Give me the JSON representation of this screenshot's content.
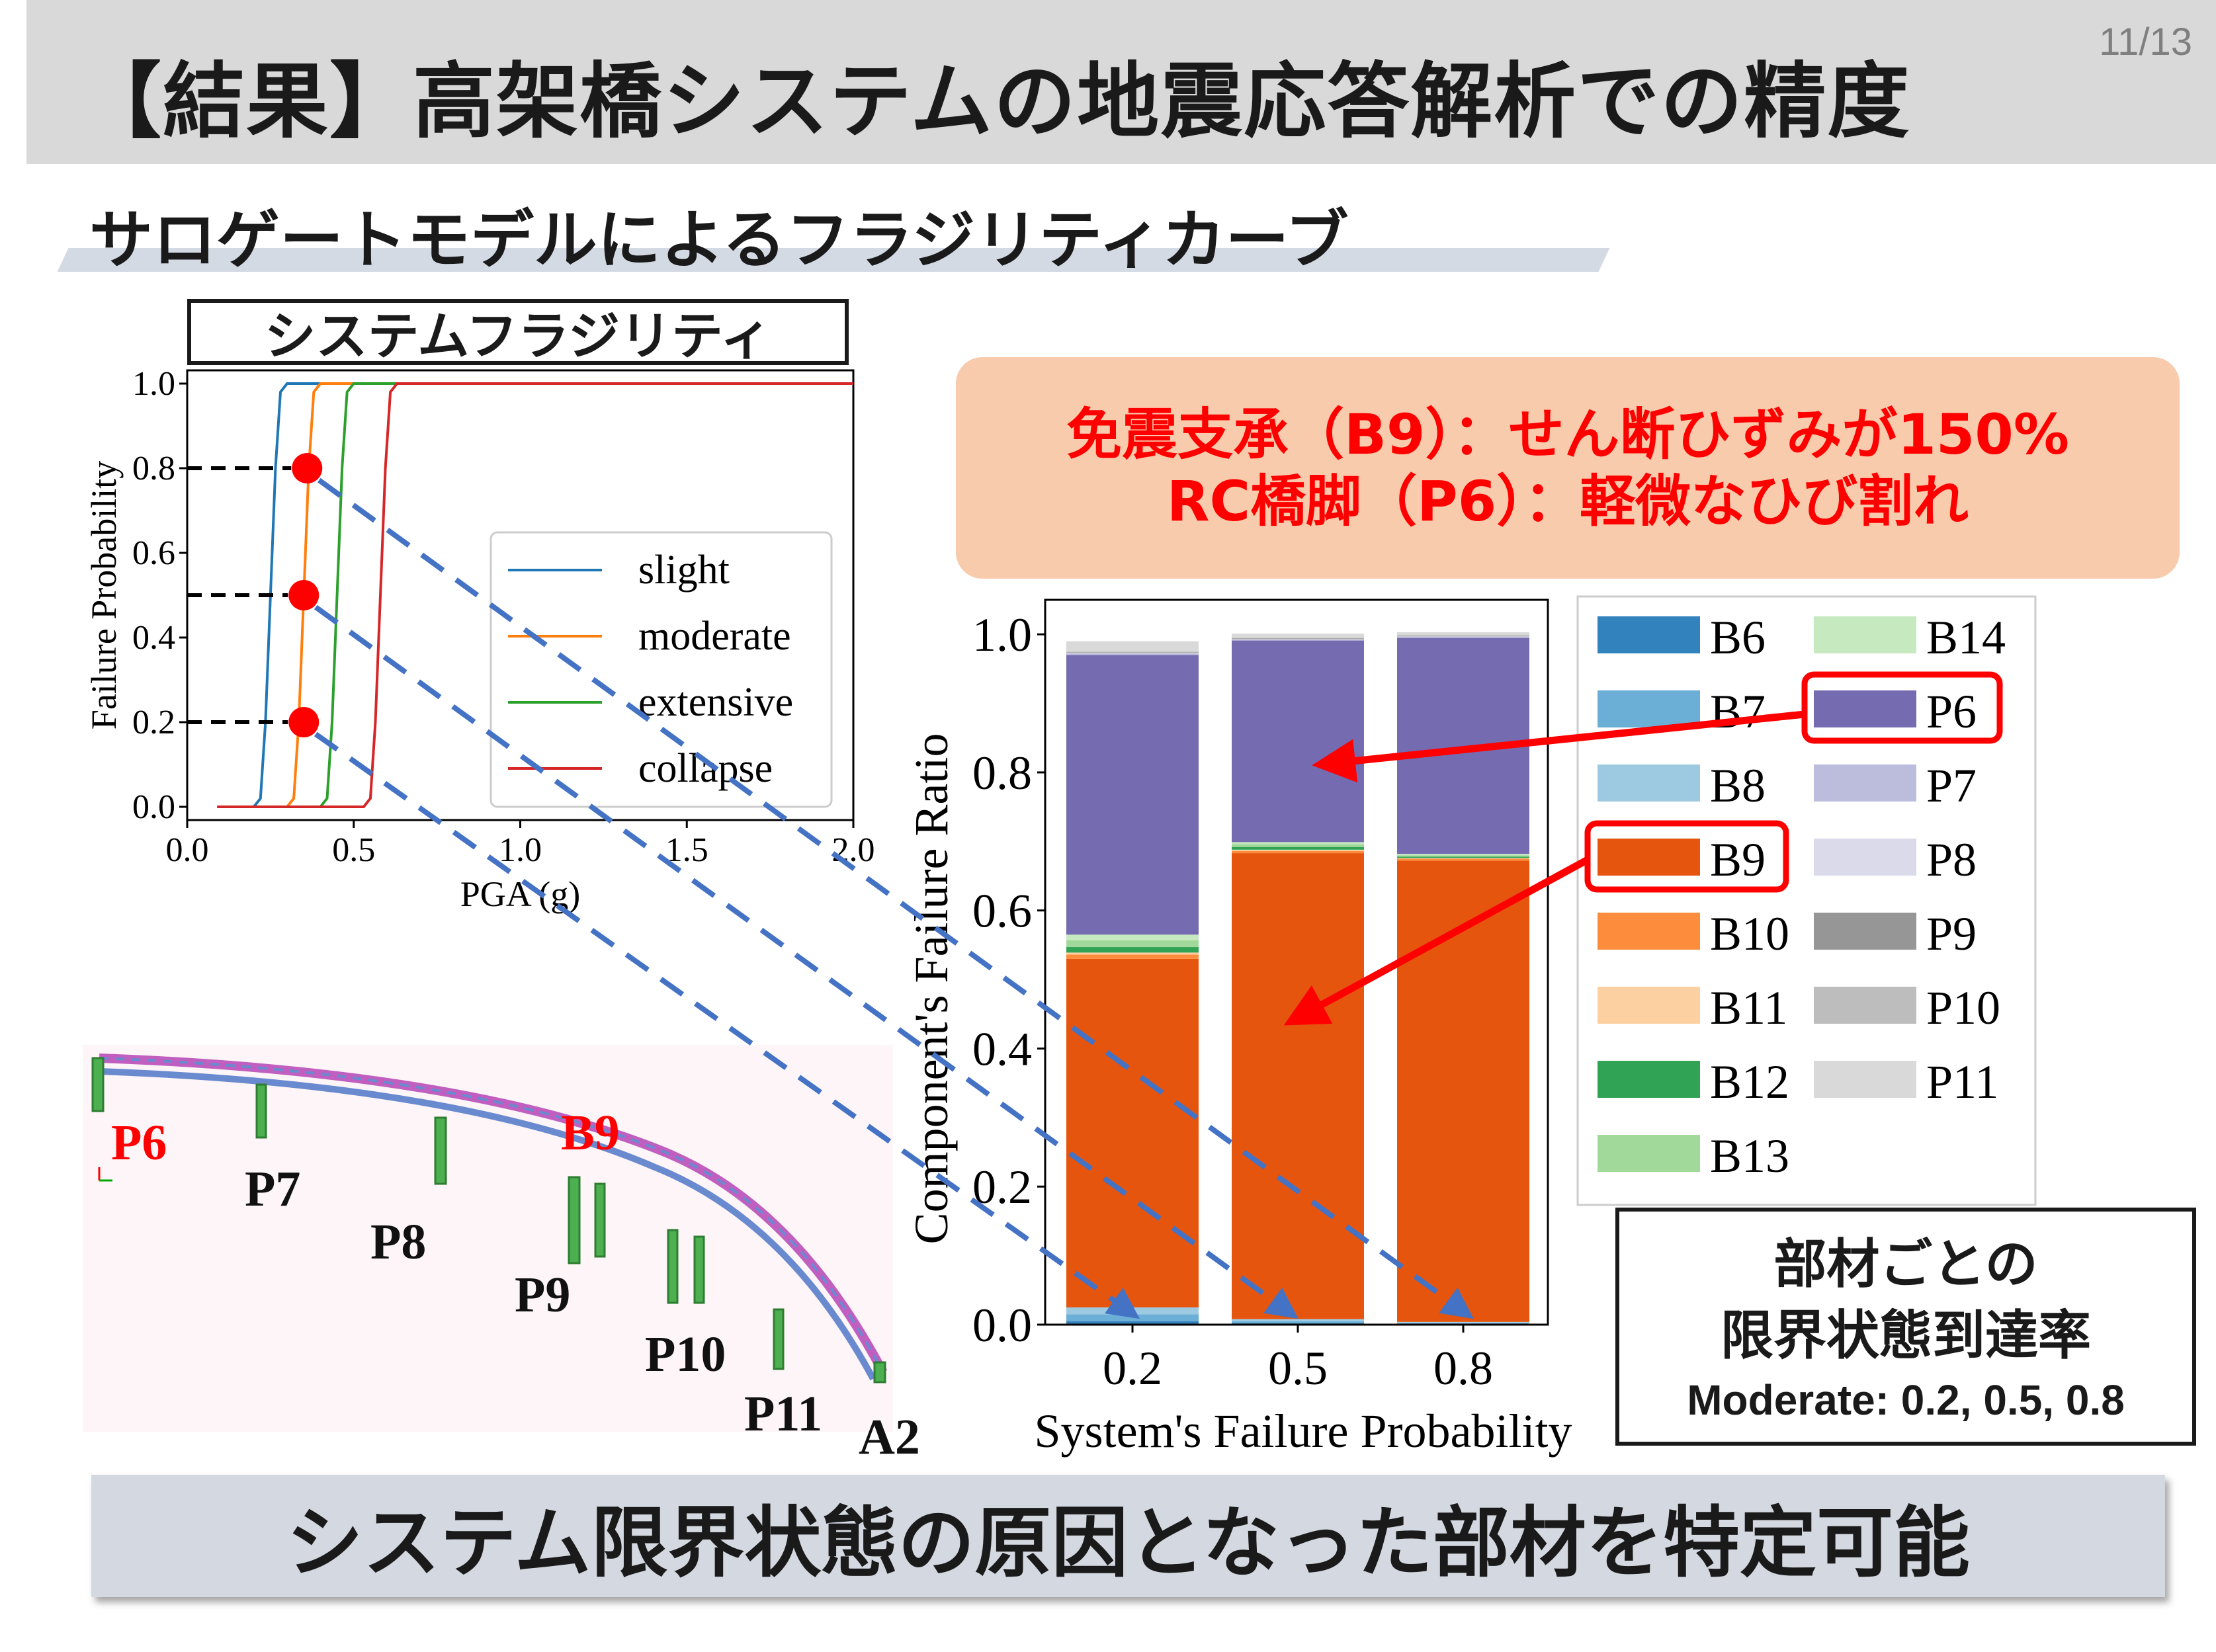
{
  "page_number": "11/13",
  "title": "【結果】高架橋システムの地震応答解析での精度",
  "subtitle": "サロゲートモデルによるフラジリティカーブ",
  "fragility_title": "システムフラジリティ",
  "annotation": {
    "line1": "免震支承（B9）：せん断ひずみが150%",
    "line2": "RC橋脚（P6）：軽微なひび割れ"
  },
  "bridge_labels": {
    "p6": "P6",
    "p7": "P7",
    "p8": "P8",
    "p9": "P9",
    "p10": "P10",
    "p11": "P11",
    "a2": "A2",
    "b9": "B9"
  },
  "ratio_box": {
    "line1": "部材ごとの",
    "line2": "限界状態到達率",
    "line3": "Moderate: 0.2, 0.5, 0.8"
  },
  "conclusion": "システム限界状態の原因となった部材を特定可能",
  "colors": {
    "highlight_red": "#ff0000",
    "arrow_blue": "#4472c4"
  },
  "chart_data": [
    {
      "type": "line",
      "title": "",
      "xlabel": "PGA (g)",
      "ylabel": "Failure Probability",
      "xlim": [
        0.0,
        2.0
      ],
      "ylim": [
        0.0,
        1.0
      ],
      "xticks": [
        "0.0",
        "0.5",
        "1.0",
        "1.5",
        "2.0"
      ],
      "yticks": [
        "0.0",
        "0.2",
        "0.4",
        "0.6",
        "0.8",
        "1.0"
      ],
      "legend_position": "center-right",
      "series": [
        {
          "name": "slight",
          "color": "#1f77b4",
          "x": [
            0.09,
            0.2,
            0.22,
            0.235,
            0.25,
            0.265,
            0.28,
            0.3,
            2.0
          ],
          "y": [
            0,
            0,
            0.02,
            0.2,
            0.5,
            0.8,
            0.98,
            1.0,
            1.0
          ]
        },
        {
          "name": "moderate",
          "color": "#ff7f0e",
          "x": [
            0.09,
            0.3,
            0.32,
            0.335,
            0.35,
            0.365,
            0.38,
            0.4,
            2.0
          ],
          "y": [
            0,
            0,
            0.02,
            0.2,
            0.5,
            0.8,
            0.98,
            1.0,
            1.0
          ]
        },
        {
          "name": "extensive",
          "color": "#2ca02c",
          "x": [
            0.09,
            0.4,
            0.42,
            0.435,
            0.45,
            0.465,
            0.48,
            0.5,
            2.0
          ],
          "y": [
            0,
            0,
            0.02,
            0.2,
            0.5,
            0.8,
            0.98,
            1.0,
            1.0
          ]
        },
        {
          "name": "collapse",
          "color": "#d62728",
          "x": [
            0.09,
            0.53,
            0.55,
            0.565,
            0.58,
            0.595,
            0.61,
            0.63,
            2.0
          ],
          "y": [
            0,
            0,
            0.02,
            0.2,
            0.5,
            0.8,
            0.98,
            1.0,
            1.0
          ]
        }
      ],
      "markers": [
        {
          "x": 0.36,
          "y": 0.8
        },
        {
          "x": 0.35,
          "y": 0.5
        },
        {
          "x": 0.35,
          "y": 0.2
        }
      ]
    },
    {
      "type": "bar",
      "title": "",
      "xlabel": "System's Failure Probability",
      "ylabel": "Component's Failure Ratio",
      "categories": [
        "0.2",
        "0.5",
        "0.8"
      ],
      "ylim": [
        0.0,
        1.05
      ],
      "yticks": [
        "0.0",
        "0.2",
        "0.4",
        "0.6",
        "0.8",
        "1.0"
      ],
      "stacked": true,
      "legend_position": "right",
      "series": [
        {
          "name": "B6",
          "color": "#3182bd",
          "values": [
            0.005,
            0.002,
            0.001
          ]
        },
        {
          "name": "B7",
          "color": "#6baed6",
          "values": [
            0.01,
            0.003,
            0.001
          ]
        },
        {
          "name": "B8",
          "color": "#9ecae1",
          "values": [
            0.01,
            0.003,
            0.002
          ]
        },
        {
          "name": "B9",
          "color": "#e6550d",
          "values": [
            0.505,
            0.675,
            0.668
          ]
        },
        {
          "name": "B10",
          "color": "#fd8d3c",
          "values": [
            0.006,
            0.003,
            0.003
          ]
        },
        {
          "name": "B11",
          "color": "#fdd0a2",
          "values": [
            0.003,
            0.002,
            0.001
          ]
        },
        {
          "name": "B12",
          "color": "#31a354",
          "values": [
            0.008,
            0.004,
            0.002
          ]
        },
        {
          "name": "B13",
          "color": "#a1d99b",
          "values": [
            0.01,
            0.004,
            0.002
          ]
        },
        {
          "name": "B14",
          "color": "#c7e9c0",
          "values": [
            0.008,
            0.003,
            0.002
          ]
        },
        {
          "name": "P6",
          "color": "#756bb1",
          "values": [
            0.405,
            0.292,
            0.313
          ]
        },
        {
          "name": "P7",
          "color": "#bcbddc",
          "values": [
            0.002,
            0.001,
            0.001
          ]
        },
        {
          "name": "P8",
          "color": "#dadaeb",
          "values": [
            0.001,
            0.001,
            0.001
          ]
        },
        {
          "name": "P9",
          "color": "#969696",
          "values": [
            0.001,
            0.001,
            0.001
          ]
        },
        {
          "name": "P10",
          "color": "#bdbdbd",
          "values": [
            0.001,
            0.001,
            0.001
          ]
        },
        {
          "name": "P11",
          "color": "#d9d9d9",
          "values": [
            0.015,
            0.006,
            0.004
          ]
        }
      ],
      "highlighted": [
        "P6",
        "B9"
      ]
    }
  ]
}
